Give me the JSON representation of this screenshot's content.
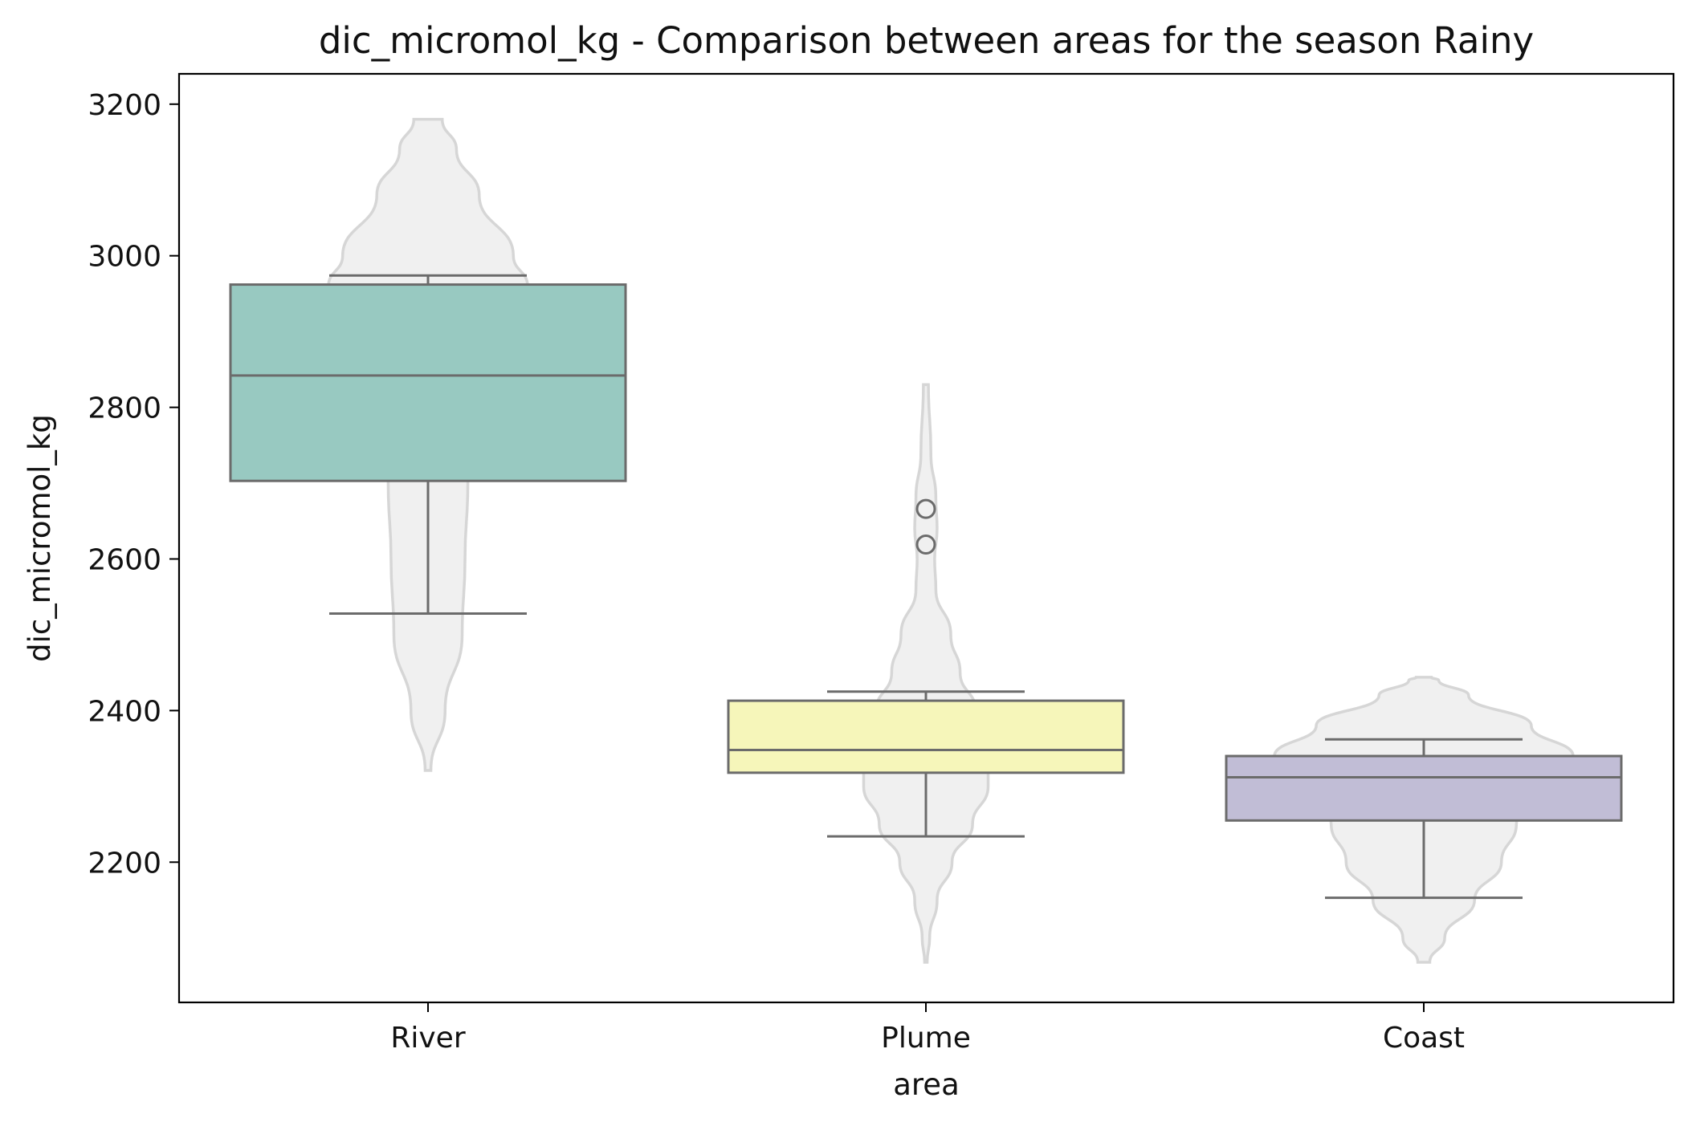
{
  "chart_data": {
    "type": "box-violin",
    "title": "dic_micromol_kg - Comparison between areas for the season Rainy",
    "xlabel": "area",
    "ylabel": "dic_micromol_kg",
    "ylim": [
      2015,
      3240
    ],
    "yticks": [
      2200,
      2400,
      2600,
      2800,
      3000,
      3200
    ],
    "categories": [
      "River",
      "Plume",
      "Coast"
    ],
    "colors": {
      "River": "#98c9c1",
      "Plume": "#f6f6ba",
      "Coast": "#c1bdd6",
      "violin_fill": "#f0f0f0",
      "violin_edge": "#d6d6d6",
      "box_edge": "#6b6b6b"
    },
    "series": [
      {
        "name": "River",
        "whisker_low": 2528,
        "q1": 2703,
        "median": 2842,
        "q3": 2962,
        "whisker_high": 2974,
        "outliers": [],
        "violin": [
          [
            2321,
            0.02
          ],
          [
            2400,
            0.12
          ],
          [
            2500,
            0.24
          ],
          [
            2600,
            0.26
          ],
          [
            2700,
            0.28
          ],
          [
            2800,
            0.4
          ],
          [
            2900,
            0.62
          ],
          [
            2960,
            0.7
          ],
          [
            3000,
            0.6
          ],
          [
            3080,
            0.36
          ],
          [
            3140,
            0.2
          ],
          [
            3180,
            0.1
          ]
        ]
      },
      {
        "name": "Plume",
        "whisker_low": 2234,
        "q1": 2318,
        "median": 2348,
        "q3": 2413,
        "whisker_high": 2425,
        "outliers": [
          2619,
          2666
        ],
        "violin": [
          [
            2068,
            0.02
          ],
          [
            2100,
            0.06
          ],
          [
            2150,
            0.18
          ],
          [
            2200,
            0.42
          ],
          [
            2250,
            0.75
          ],
          [
            2300,
            1.0
          ],
          [
            2340,
            1.0
          ],
          [
            2400,
            0.8
          ],
          [
            2450,
            0.55
          ],
          [
            2500,
            0.4
          ],
          [
            2560,
            0.16
          ],
          [
            2600,
            0.14
          ],
          [
            2640,
            0.18
          ],
          [
            2680,
            0.16
          ],
          [
            2740,
            0.08
          ],
          [
            2830,
            0.04
          ]
        ]
      },
      {
        "name": "Coast",
        "whisker_low": 2153,
        "q1": 2255,
        "median": 2312,
        "q3": 2340,
        "whisker_high": 2362,
        "outliers": [],
        "violin": [
          [
            2068,
            0.04
          ],
          [
            2100,
            0.14
          ],
          [
            2150,
            0.34
          ],
          [
            2200,
            0.52
          ],
          [
            2250,
            0.62
          ],
          [
            2300,
            0.86
          ],
          [
            2340,
            1.0
          ],
          [
            2380,
            0.72
          ],
          [
            2420,
            0.3
          ],
          [
            2440,
            0.1
          ],
          [
            2444,
            0.05
          ]
        ]
      }
    ]
  }
}
